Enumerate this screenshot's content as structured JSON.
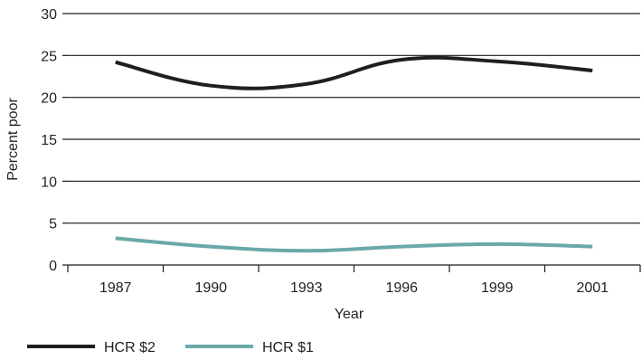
{
  "chart_data": {
    "type": "line",
    "categories": [
      "1987",
      "1990",
      "1993",
      "1996",
      "1999",
      "2001"
    ],
    "series": [
      {
        "name": "HCR $2",
        "values": [
          24.2,
          21.4,
          21.6,
          24.5,
          24.3,
          23.2
        ],
        "color": "#1f1f1f"
      },
      {
        "name": "HCR $1",
        "values": [
          3.2,
          2.2,
          1.7,
          2.2,
          2.5,
          2.2
        ],
        "color": "#6aa9a8"
      }
    ],
    "title": "",
    "xlabel": "Year",
    "ylabel": "Percent poor",
    "ylim": [
      0,
      30
    ],
    "yticks": [
      0,
      5,
      10,
      15,
      20,
      25,
      30
    ],
    "grid": "horizontal",
    "legend_position": "bottom-left"
  }
}
